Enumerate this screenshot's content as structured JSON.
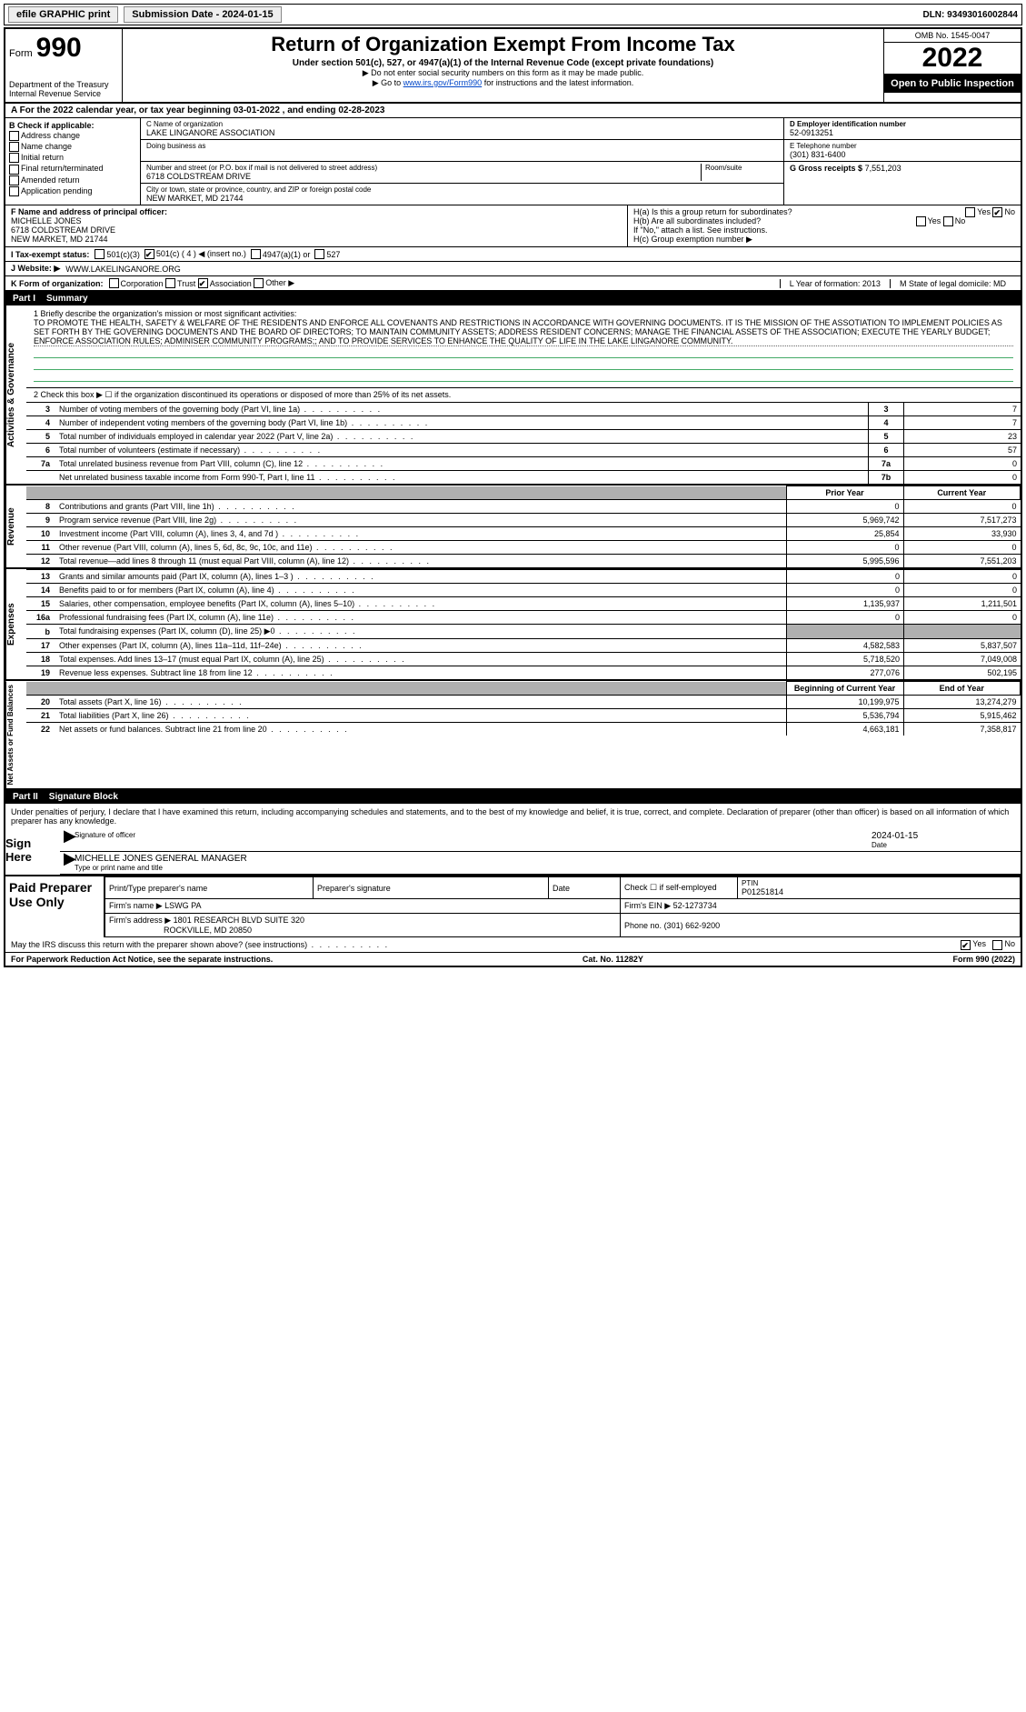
{
  "topbar": {
    "efile": "efile GRAPHIC print",
    "submission": "Submission Date - 2024-01-15",
    "dln": "DLN: 93493016002844"
  },
  "header": {
    "form_word": "Form",
    "form_num": "990",
    "dept": "Department of the Treasury",
    "irs": "Internal Revenue Service",
    "title": "Return of Organization Exempt From Income Tax",
    "sub1": "Under section 501(c), 527, or 4947(a)(1) of the Internal Revenue Code (except private foundations)",
    "sub2": "▶ Do not enter social security numbers on this form as it may be made public.",
    "sub3_pre": "▶ Go to ",
    "sub3_link": "www.irs.gov/Form990",
    "sub3_post": " for instructions and the latest information.",
    "omb": "OMB No. 1545-0047",
    "year": "2022",
    "open": "Open to Public Inspection"
  },
  "periodA": "A For the 2022 calendar year, or tax year beginning 03-01-2022 , and ending 02-28-2023",
  "checkB": {
    "hdr": "B Check if applicable:",
    "items": [
      "Address change",
      "Name change",
      "Initial return",
      "Final return/terminated",
      "Amended return",
      "Application pending"
    ]
  },
  "boxC": {
    "name_lbl": "C Name of organization",
    "name": "LAKE LINGANORE ASSOCIATION",
    "dba_lbl": "Doing business as",
    "street_lbl": "Number and street (or P.O. box if mail is not delivered to street address)",
    "room_lbl": "Room/suite",
    "street": "6718 COLDSTREAM DRIVE",
    "city_lbl": "City or town, state or province, country, and ZIP or foreign postal code",
    "city": "NEW MARKET, MD  21744"
  },
  "boxD": {
    "ein_lbl": "D Employer identification number",
    "ein": "52-0913251",
    "tel_lbl": "E Telephone number",
    "tel": "(301) 831-6400",
    "gross_lbl": "G Gross receipts $",
    "gross": "7,551,203"
  },
  "boxF": {
    "lbl": "F Name and address of principal officer:",
    "name": "MICHELLE JONES",
    "addr1": "6718 COLDSTREAM DRIVE",
    "addr2": "NEW MARKET, MD  21744"
  },
  "boxH": {
    "ha": "H(a)  Is this a group return for subordinates?",
    "hb": "H(b)  Are all subordinates included?",
    "hnote": "If \"No,\" attach a list. See instructions.",
    "hc": "H(c)  Group exemption number ▶",
    "yes": "Yes",
    "no": "No"
  },
  "rowI": {
    "lbl": "I   Tax-exempt status:",
    "o1": "501(c)(3)",
    "o2": "501(c) ( 4 ) ◀ (insert no.)",
    "o3": "4947(a)(1) or",
    "o4": "527"
  },
  "rowJ": {
    "lbl": "J   Website: ▶",
    "val": "WWW.LAKELINGANORE.ORG"
  },
  "rowK": {
    "lbl": "K Form of organization:",
    "c": "Corporation",
    "t": "Trust",
    "a": "Association",
    "o": "Other ▶",
    "L": "L Year of formation: 2013",
    "M": "M State of legal domicile: MD"
  },
  "partI": {
    "num": "Part I",
    "title": "Summary"
  },
  "side": {
    "ag": "Activities & Governance",
    "rev": "Revenue",
    "exp": "Expenses",
    "na": "Net Assets or Fund Balances"
  },
  "mission": {
    "lbl": "1   Briefly describe the organization's mission or most significant activities:",
    "txt": "TO PROMOTE THE HEALTH, SAFETY & WELFARE OF THE RESIDENTS AND ENFORCE ALL COVENANTS AND RESTRICTIONS IN ACCORDANCE WITH GOVERNING DOCUMENTS. IT IS THE MISSION OF THE ASSOTIATION TO IMPLEMENT POLICIES AS SET FORTH BY THE GOVERNING DOCUMENTS AND THE BOARD OF DIRECTORS; TO MAINTAIN COMMUNITY ASSETS; ADDRESS RESIDENT CONCERNS; MANAGE THE FINANCIAL ASSETS OF THE ASSOCIATION; EXECUTE THE YEARLY BUDGET; ENFORCE ASSOCIATION RULES; ADMINISER COMMUNITY PROGRAMS;; AND TO PROVIDE SERVICES TO ENHANCE THE QUALITY OF LIFE IN THE LAKE LINGANORE COMMUNITY."
  },
  "gov": {
    "l2": "2   Check this box ▶ ☐ if the organization discontinued its operations or disposed of more than 25% of its net assets.",
    "rows": [
      {
        "n": "3",
        "t": "Number of voting members of the governing body (Part VI, line 1a)",
        "b": "3",
        "v": "7"
      },
      {
        "n": "4",
        "t": "Number of independent voting members of the governing body (Part VI, line 1b)",
        "b": "4",
        "v": "7"
      },
      {
        "n": "5",
        "t": "Total number of individuals employed in calendar year 2022 (Part V, line 2a)",
        "b": "5",
        "v": "23"
      },
      {
        "n": "6",
        "t": "Total number of volunteers (estimate if necessary)",
        "b": "6",
        "v": "57"
      },
      {
        "n": "7a",
        "t": "Total unrelated business revenue from Part VIII, column (C), line 12",
        "b": "7a",
        "v": "0"
      },
      {
        "n": "",
        "t": "Net unrelated business taxable income from Form 990-T, Part I, line 11",
        "b": "7b",
        "v": "0"
      }
    ]
  },
  "pycy": {
    "py": "Prior Year",
    "cy": "Current Year"
  },
  "rev": [
    {
      "n": "8",
      "t": "Contributions and grants (Part VIII, line 1h)",
      "p": "0",
      "c": "0"
    },
    {
      "n": "9",
      "t": "Program service revenue (Part VIII, line 2g)",
      "p": "5,969,742",
      "c": "7,517,273"
    },
    {
      "n": "10",
      "t": "Investment income (Part VIII, column (A), lines 3, 4, and 7d )",
      "p": "25,854",
      "c": "33,930"
    },
    {
      "n": "11",
      "t": "Other revenue (Part VIII, column (A), lines 5, 6d, 8c, 9c, 10c, and 11e)",
      "p": "0",
      "c": "0"
    },
    {
      "n": "12",
      "t": "Total revenue—add lines 8 through 11 (must equal Part VIII, column (A), line 12)",
      "p": "5,995,596",
      "c": "7,551,203"
    }
  ],
  "exp": [
    {
      "n": "13",
      "t": "Grants and similar amounts paid (Part IX, column (A), lines 1–3 )",
      "p": "0",
      "c": "0"
    },
    {
      "n": "14",
      "t": "Benefits paid to or for members (Part IX, column (A), line 4)",
      "p": "0",
      "c": "0"
    },
    {
      "n": "15",
      "t": "Salaries, other compensation, employee benefits (Part IX, column (A), lines 5–10)",
      "p": "1,135,937",
      "c": "1,211,501"
    },
    {
      "n": "16a",
      "t": "Professional fundraising fees (Part IX, column (A), line 11e)",
      "p": "0",
      "c": "0"
    },
    {
      "n": "b",
      "t": "Total fundraising expenses (Part IX, column (D), line 25) ▶0",
      "p": "",
      "c": "",
      "shade": true
    },
    {
      "n": "17",
      "t": "Other expenses (Part IX, column (A), lines 11a–11d, 11f–24e)",
      "p": "4,582,583",
      "c": "5,837,507"
    },
    {
      "n": "18",
      "t": "Total expenses. Add lines 13–17 (must equal Part IX, column (A), line 25)",
      "p": "5,718,520",
      "c": "7,049,008"
    },
    {
      "n": "19",
      "t": "Revenue less expenses. Subtract line 18 from line 12",
      "p": "277,076",
      "c": "502,195"
    }
  ],
  "bceoy": {
    "b": "Beginning of Current Year",
    "e": "End of Year"
  },
  "na": [
    {
      "n": "20",
      "t": "Total assets (Part X, line 16)",
      "p": "10,199,975",
      "c": "13,274,279"
    },
    {
      "n": "21",
      "t": "Total liabilities (Part X, line 26)",
      "p": "5,536,794",
      "c": "5,915,462"
    },
    {
      "n": "22",
      "t": "Net assets or fund balances. Subtract line 21 from line 20",
      "p": "4,663,181",
      "c": "7,358,817"
    }
  ],
  "partII": {
    "num": "Part II",
    "title": "Signature Block"
  },
  "sig": {
    "decl": "Under penalties of perjury, I declare that I have examined this return, including accompanying schedules and statements, and to the best of my knowledge and belief, it is true, correct, and complete. Declaration of preparer (other than officer) is based on all information of which preparer has any knowledge.",
    "sign_here": "Sign Here",
    "date": "2024-01-15",
    "sig_lbl": "Signature of officer",
    "date_lbl": "Date",
    "name": "MICHELLE JONES  GENERAL MANAGER",
    "name_lbl": "Type or print name and title"
  },
  "prep": {
    "title": "Paid Preparer Use Only",
    "h1": "Print/Type preparer's name",
    "h2": "Preparer's signature",
    "h3": "Date",
    "h4_a": "Check ☐ if self-employed",
    "h4_b": "PTIN",
    "ptin": "P01251814",
    "firm_lbl": "Firm's name   ▶",
    "firm": "LSWG PA",
    "ein_lbl": "Firm's EIN ▶",
    "ein": "52-1273734",
    "addr_lbl": "Firm's address ▶",
    "addr1": "1801 RESEARCH BLVD SUITE 320",
    "addr2": "ROCKVILLE, MD  20850",
    "phone_lbl": "Phone no.",
    "phone": "(301) 662-9200"
  },
  "discuss": {
    "q": "May the IRS discuss this return with the preparer shown above? (see instructions)",
    "yes": "Yes",
    "no": "No"
  },
  "footer": {
    "left": "For Paperwork Reduction Act Notice, see the separate instructions.",
    "mid": "Cat. No. 11282Y",
    "right": "Form 990 (2022)"
  }
}
